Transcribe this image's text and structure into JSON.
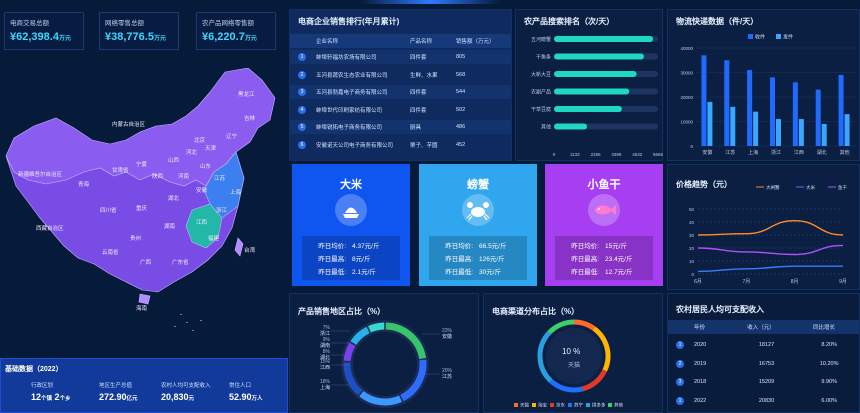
{
  "kpis": [
    {
      "label": "电商交易总额",
      "value": "¥62,398.4",
      "unit": "万元"
    },
    {
      "label": "网络零售总额",
      "value": "¥38,776.5",
      "unit": "万元"
    },
    {
      "label": "农产品网络零售额",
      "value": "¥6,220.7",
      "unit": "万元"
    }
  ],
  "map": {
    "provinces": [
      "黑龙江",
      "吉林",
      "辽宁",
      "内蒙古自治区",
      "北京",
      "天津",
      "河北",
      "山西",
      "山东",
      "河南",
      "陕西",
      "宁夏",
      "甘肃省",
      "青海",
      "新疆维吾尔自治区",
      "西藏自治区",
      "四川省",
      "重庆",
      "湖北",
      "安徽",
      "江苏",
      "上海",
      "浙江",
      "江西",
      "湖南",
      "贵州",
      "云南省",
      "广西",
      "广东省",
      "福建",
      "台湾",
      "海南"
    ],
    "colors": {
      "dark": "#6a3fd8",
      "light": "#b08cff",
      "teal": "#1fb7a6",
      "blue": "#2f6fe0"
    }
  },
  "basic": {
    "title": "基础数据（2022）",
    "items": [
      {
        "label": "行政区划",
        "value": "12",
        "unit": "个镇",
        "value2": "2",
        "unit2": "个乡"
      },
      {
        "label": "地区生产总值",
        "value": "272.90",
        "unit": "亿元"
      },
      {
        "label": "农村人均可支配收入",
        "value": "20,830",
        "unit": "元"
      },
      {
        "label": "常住人口",
        "value": "52.90",
        "unit": "万人"
      }
    ]
  },
  "sales_rank": {
    "title": "电商企业销售排行(年月累计)",
    "headers": [
      "企业名称",
      "产品名称",
      "销售额（万元）"
    ],
    "rows": [
      {
        "no": "1",
        "name": "蚌埠轩福坊农场有限公司",
        "product": "四件套",
        "amount": "805"
      },
      {
        "no": "2",
        "name": "五河县蔬农生态农业有限公司",
        "product": "生鲜、水果",
        "amount": "568"
      },
      {
        "no": "3",
        "name": "五河县勃嘉电子商务有限公司",
        "product": "四件套",
        "amount": "544"
      },
      {
        "no": "4",
        "name": "蚌埠世代印刷家纺有限公司",
        "product": "四件套",
        "amount": "502"
      },
      {
        "no": "5",
        "name": "蚌埠锐拓电子商务有限公司",
        "product": "厨具",
        "amount": "486"
      },
      {
        "no": "6",
        "name": "安徽诺天公司电子商务有限公司",
        "product": "栗子、芋圆",
        "amount": "452"
      }
    ]
  },
  "search_rank": {
    "title": "农产品搜索排名（次/天）",
    "chart_data": {
      "type": "bar",
      "categories": [
        "五河螃蟹",
        "干鱼条",
        "大新大豆",
        "农副产品",
        "干草豆腐",
        "其他"
      ],
      "values": [
        5400,
        4900,
        4500,
        4100,
        3700,
        1800
      ],
      "xticks": [
        "0",
        "1133",
        "2266",
        "3399",
        "4532",
        "5665"
      ],
      "xlim": [
        0,
        5665
      ]
    }
  },
  "logistics": {
    "title": "物流快递数据（件/天）",
    "chart_data": {
      "type": "bar",
      "categories": [
        "安徽",
        "江苏",
        "上海",
        "浙江",
        "江西",
        "湖北",
        "其他"
      ],
      "series": [
        {
          "name": "收件",
          "values": [
            37000,
            35000,
            31000,
            28000,
            26000,
            23000,
            29000
          ]
        },
        {
          "name": "发件",
          "values": [
            18000,
            16000,
            14000,
            11000,
            11000,
            9000,
            13000
          ]
        }
      ],
      "yticks": [
        "0",
        "10000",
        "20000",
        "30000",
        "40000"
      ],
      "ylim": [
        0,
        40000
      ]
    }
  },
  "cards": [
    {
      "title": "大米",
      "icon": "rice-icon",
      "rows": [
        {
          "k": "昨日均价:",
          "v": "4.37元/斤"
        },
        {
          "k": "昨日最高:",
          "v": "8元/斤"
        },
        {
          "k": "昨日最低:",
          "v": "2.1元/斤"
        }
      ]
    },
    {
      "title": "螃蟹",
      "icon": "crab-icon",
      "rows": [
        {
          "k": "昨日均价:",
          "v": "66.5元/斤"
        },
        {
          "k": "昨日最高:",
          "v": "126元/斤"
        },
        {
          "k": "昨日最低:",
          "v": "30元/斤"
        }
      ]
    },
    {
      "title": "小鱼干",
      "icon": "fish-icon",
      "rows": [
        {
          "k": "昨日均价:",
          "v": "15元/斤"
        },
        {
          "k": "昨日最高:",
          "v": "23.4元/斤"
        },
        {
          "k": "昨日最低:",
          "v": "12.7元/斤"
        }
      ]
    }
  ],
  "price_trend": {
    "title": "价格趋势（元）",
    "chart_data": {
      "type": "line",
      "x": [
        "6月",
        "7月",
        "8月",
        "9月"
      ],
      "yticks": [
        "0",
        "10",
        "20",
        "30",
        "40",
        "50"
      ],
      "ylim": [
        0,
        50
      ],
      "series": [
        {
          "name": "大闸蟹",
          "color": "#ff8a2a",
          "values": [
            30,
            31,
            41,
            30
          ]
        },
        {
          "name": "大米",
          "color": "#3a7bff",
          "values": [
            2,
            4,
            6,
            6
          ]
        },
        {
          "name": "鱼干",
          "color": "#b34dff",
          "values": [
            20,
            17,
            15,
            22
          ]
        }
      ]
    }
  },
  "region_share": {
    "title": "产品销售地区占比（%）",
    "chart_data": {
      "type": "pie",
      "slices": [
        {
          "label": "安徽",
          "value": 23,
          "color": "#38c46a"
        },
        {
          "label": "江苏",
          "value": 20,
          "color": "#2e6cff"
        },
        {
          "label": "上海",
          "value": 18,
          "color": "#3a99ff"
        },
        {
          "label": "江西",
          "value": 15,
          "color": "#1d4fc0"
        },
        {
          "label": "湖北",
          "value": 8,
          "color": "#7b3ff2"
        },
        {
          "label": "湖南",
          "value": 9,
          "color": "#28b0e6"
        },
        {
          "label": "浙江",
          "value": 7,
          "color": "#3ad6d0"
        }
      ],
      "labels_left": [
        {
          "pct": "7%",
          "name": "浙江"
        },
        {
          "pct": "9%",
          "name": "湖南"
        },
        {
          "pct": "8%",
          "name": "湖北"
        },
        {
          "pct": "15%",
          "name": "江西"
        },
        {
          "pct": "18%",
          "name": "上海"
        }
      ],
      "labels_right": [
        {
          "pct": "23%",
          "name": "安徽"
        },
        {
          "pct": "20%",
          "name": "江苏"
        }
      ]
    }
  },
  "channel_share": {
    "title": "电商渠道分布占比（%）",
    "center_value": "10 %",
    "center_label": "天猫",
    "chart_data": {
      "type": "pie",
      "slices": [
        {
          "label": "天猫",
          "value": 10,
          "color": "#ff6a2a"
        },
        {
          "label": "淘宝",
          "value": 22,
          "color": "#ffb400"
        },
        {
          "label": "京东",
          "value": 14,
          "color": "#e23a2a"
        },
        {
          "label": "苏宁",
          "value": 16,
          "color": "#1f6fff"
        },
        {
          "label": "拼多多",
          "value": 25,
          "color": "#2a9fe0"
        },
        {
          "label": "其他",
          "value": 13,
          "color": "#3ccf6a"
        }
      ]
    }
  },
  "income": {
    "title": "农村居民人均可支配收入",
    "headers": [
      "年份",
      "收入（元）",
      "同比增长"
    ],
    "rows": [
      {
        "no": "1",
        "year": "2020",
        "income": "18127",
        "growth": "8.20%"
      },
      {
        "no": "2",
        "year": "2019",
        "income": "16753",
        "growth": "10.20%"
      },
      {
        "no": "3",
        "year": "2018",
        "income": "15209",
        "growth": "9.90%"
      },
      {
        "no": "1",
        "year": "2022",
        "income": "20830",
        "growth": "6.00%"
      }
    ]
  }
}
